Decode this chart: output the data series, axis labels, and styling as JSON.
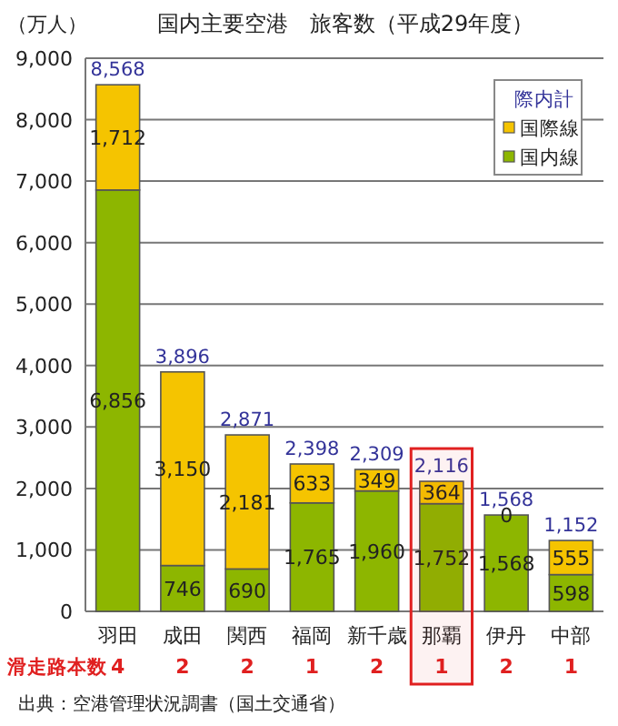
{
  "chart_data": {
    "type": "bar",
    "title": "国内主要空港　旅客数（平成29年度）",
    "ylabel": "（万人）",
    "legend_title": "際内計",
    "categories": [
      "羽田",
      "成田",
      "関西",
      "福岡",
      "新千歳",
      "那覇",
      "伊丹",
      "中部"
    ],
    "stacked": true,
    "grid": "y",
    "legend": "top right",
    "series": [
      {
        "name": "国内線",
        "color": "#8db600",
        "values": [
          6856,
          746,
          690,
          1765,
          1960,
          1752,
          1568,
          598
        ],
        "value_labels": [
          "6,856",
          "746",
          "690",
          "1,765",
          "1,960",
          "1,752",
          "1,568",
          "598"
        ]
      },
      {
        "name": "国際線",
        "color": "#f5c400",
        "values": [
          1712,
          3150,
          2181,
          633,
          349,
          364,
          0,
          555
        ],
        "value_labels": [
          "1,712",
          "3,150",
          "2,181",
          "633",
          "349",
          "364",
          "0",
          "555"
        ]
      }
    ],
    "totals": [
      "8,568",
      "3,896",
      "2,871",
      "2,398",
      "2,309",
      "2,116",
      "1,568",
      "1,152"
    ],
    "ylim": [
      0,
      9000
    ],
    "yticks": [
      {
        "value": 0,
        "label": "0"
      },
      {
        "value": 1000,
        "label": "1,000"
      },
      {
        "value": 2000,
        "label": "2,000"
      },
      {
        "value": 3000,
        "label": "3,000"
      },
      {
        "value": 4000,
        "label": "4,000"
      },
      {
        "value": 5000,
        "label": "5,000"
      },
      {
        "value": 6000,
        "label": "6,000"
      },
      {
        "value": 7000,
        "label": "7,000"
      },
      {
        "value": 8000,
        "label": "8,000"
      },
      {
        "value": 9000,
        "label": "9,000"
      }
    ],
    "bands": [
      {
        "axis": "x",
        "from": "那覇",
        "to": "那覇",
        "color": "#e02020"
      }
    ],
    "annotations": [
      "滑走路本数",
      "4",
      "2",
      "2",
      "1",
      "2",
      "1",
      "2",
      "1",
      "出典：空港管理状況調書（国土交通省）"
    ]
  }
}
